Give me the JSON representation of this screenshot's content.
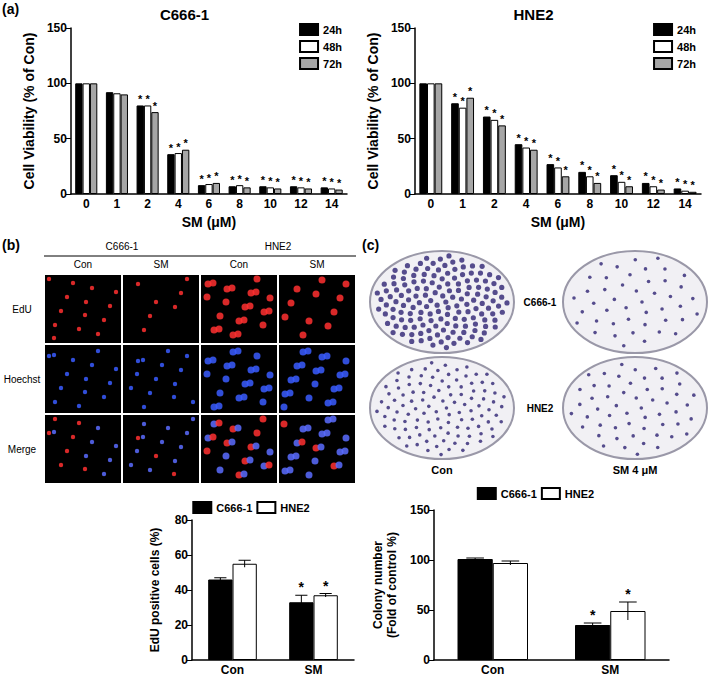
{
  "panel_labels": [
    "(a)",
    "(b)",
    "(c)"
  ],
  "chart_data": [
    {
      "type": "bar",
      "title": "C666-1",
      "x_label": "SM (μM)",
      "y_label": "Cell Viability (% of Con)",
      "categories": [
        0,
        1,
        2,
        4,
        6,
        8,
        10,
        12,
        14
      ],
      "ylim": [
        0,
        150
      ],
      "yticks": [
        0,
        50,
        100,
        150
      ],
      "grid": false,
      "legend": "upper right",
      "series": [
        {
          "name": "24h",
          "color": "#000000",
          "values": [
            100,
            92,
            80,
            36,
            8,
            7,
            7,
            7,
            6
          ],
          "significance": [
            null,
            null,
            "*",
            "*",
            "*",
            "*",
            "*",
            "*",
            "*"
          ]
        },
        {
          "name": "48h",
          "color": "#ffffff",
          "values": [
            100,
            91,
            80,
            37,
            9,
            8,
            6,
            6,
            5
          ],
          "significance": [
            null,
            null,
            "*",
            "*",
            "*",
            "*",
            "*",
            "*",
            "*"
          ]
        },
        {
          "name": "72h",
          "color": "#a6a6a6",
          "values": [
            100,
            90,
            74,
            40,
            10,
            6,
            5,
            5,
            4
          ],
          "significance": [
            null,
            null,
            "*",
            "*",
            "*",
            "*",
            "*",
            "*",
            "*"
          ]
        }
      ]
    },
    {
      "type": "bar",
      "title": "HNE2",
      "x_label": "SM (μM)",
      "y_label": "Cell Viability (% of Con)",
      "categories": [
        0,
        1,
        2,
        4,
        6,
        8,
        10,
        12,
        14
      ],
      "ylim": [
        0,
        150
      ],
      "yticks": [
        0,
        50,
        100,
        150
      ],
      "grid": false,
      "legend": "upper right",
      "series": [
        {
          "name": "24h",
          "color": "#000000",
          "values": [
            100,
            82,
            70,
            45,
            27,
            20,
            17,
            10,
            5
          ],
          "significance": [
            null,
            "*",
            "*",
            "*",
            "*",
            "*",
            "*",
            "*",
            "*"
          ]
        },
        {
          "name": "48h",
          "color": "#ffffff",
          "values": [
            100,
            78,
            67,
            42,
            24,
            16,
            11,
            7,
            3
          ],
          "significance": [
            null,
            "*",
            "*",
            "*",
            "*",
            "*",
            "*",
            "*",
            "*"
          ]
        },
        {
          "name": "72h",
          "color": "#a6a6a6",
          "values": [
            100,
            87,
            62,
            40,
            16,
            10,
            7,
            4,
            2
          ],
          "significance": [
            null,
            "*",
            "*",
            "*",
            "*",
            "*",
            "*",
            "*",
            "*"
          ]
        }
      ]
    },
    {
      "type": "bar",
      "y_label": "EdU positive cells (%)",
      "categories": [
        "Con",
        "SM"
      ],
      "ylim": [
        0,
        80
      ],
      "yticks": [
        0,
        20,
        40,
        60,
        80
      ],
      "grid": false,
      "legend": "upper center",
      "series": [
        {
          "name": "C666-1",
          "color": "#000000",
          "values": [
            46,
            33
          ],
          "errors": [
            1,
            4
          ],
          "significance": [
            null,
            "*"
          ]
        },
        {
          "name": "HNE2",
          "color": "#ffffff",
          "values": [
            55,
            37
          ],
          "errors": [
            2,
            1
          ],
          "significance": [
            null,
            "*"
          ]
        }
      ]
    },
    {
      "type": "bar",
      "y_label": "Colony number\n(Fold of control %)",
      "categories": [
        "Con",
        "SM"
      ],
      "ylim": [
        0,
        150
      ],
      "yticks": [
        0,
        50,
        100,
        150
      ],
      "grid": false,
      "legend": "upper center",
      "series": [
        {
          "name": "C666-1",
          "color": "#000000",
          "values": [
            101,
            35
          ],
          "errors": [
            1,
            2
          ],
          "significance": [
            null,
            "*"
          ]
        },
        {
          "name": "HNE2",
          "color": "#ffffff",
          "values": [
            97,
            49
          ],
          "errors": [
            2,
            9
          ],
          "significance": [
            null,
            "*"
          ]
        }
      ]
    }
  ],
  "edu_images": {
    "groups": [
      "C666-1",
      "HNE2"
    ],
    "conditions": [
      "Con",
      "SM"
    ],
    "rows": [
      "EdU",
      "Hoechst",
      "Merge"
    ]
  },
  "colony_images": {
    "rows": [
      "C666-1",
      "HNE2"
    ],
    "columns": [
      "Con",
      "SM 4 μM"
    ]
  }
}
